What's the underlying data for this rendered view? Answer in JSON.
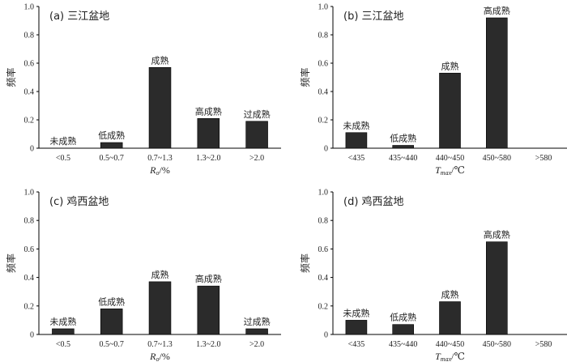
{
  "chart_data": [
    {
      "type": "bar",
      "title": "(a) 三江盆地",
      "ylabel": "频率",
      "xlabel": {
        "symbol": "R",
        "sub": "o",
        "unit": "/%"
      },
      "ylim": [
        0,
        1.0
      ],
      "yticks": [
        "0",
        "0.2",
        "0.4",
        "0.6",
        "0.8",
        "1.0"
      ],
      "categories": [
        "<0.5",
        "0.5~0.7",
        "0.7~1.3",
        "1.3~2.0",
        ">2.0"
      ],
      "values": [
        0.0,
        0.04,
        0.57,
        0.21,
        0.19
      ],
      "bar_labels": [
        "未成熟",
        "低成熟",
        "成熟",
        "高成熟",
        "过成熟"
      ]
    },
    {
      "type": "bar",
      "title": "(b) 三江盆地",
      "ylabel": "频率",
      "xlabel": {
        "symbol": "T",
        "sub": "max",
        "unit": "/℃"
      },
      "ylim": [
        0,
        1.0
      ],
      "yticks": [
        "0",
        "0.2",
        "0.4",
        "0.6",
        "0.8",
        "1.0"
      ],
      "categories": [
        "<435",
        "435~440",
        "440~450",
        "450~580",
        ">580"
      ],
      "values": [
        0.11,
        0.02,
        0.53,
        0.92,
        0.0
      ],
      "bar_labels": [
        "未成熟",
        "低成熟",
        "成熟",
        "高成熟",
        ""
      ]
    },
    {
      "type": "bar",
      "title": "(c) 鸡西盆地",
      "ylabel": "频率",
      "xlabel": {
        "symbol": "R",
        "sub": "o",
        "unit": "/%"
      },
      "ylim": [
        0,
        1.0
      ],
      "yticks": [
        "0",
        "0.2",
        "0.4",
        "0.6",
        "0.8",
        "1.0"
      ],
      "categories": [
        "<0.5",
        "0.5~0.7",
        "0.7~1.3",
        "1.3~2.0",
        ">2.0"
      ],
      "values": [
        0.04,
        0.18,
        0.37,
        0.34,
        0.04
      ],
      "bar_labels": [
        "未成熟",
        "低成熟",
        "成熟",
        "高成熟",
        "过成熟"
      ]
    },
    {
      "type": "bar",
      "title": "(d) 鸡西盆地",
      "ylabel": "频率",
      "xlabel": {
        "symbol": "T",
        "sub": "max",
        "unit": "/℃"
      },
      "ylim": [
        0,
        1.0
      ],
      "yticks": [
        "0",
        "0.2",
        "0.4",
        "0.6",
        "0.8",
        "1.0"
      ],
      "categories": [
        "<435",
        "435~440",
        "440~450",
        "450~580",
        ">580"
      ],
      "values": [
        0.1,
        0.07,
        0.23,
        0.65,
        0.0
      ],
      "bar_labels": [
        "未成熟",
        "低成熟",
        "成熟",
        "高成熟",
        ""
      ]
    }
  ],
  "colors": {
    "bar": "#2b2b2b",
    "axis": "#000000"
  }
}
